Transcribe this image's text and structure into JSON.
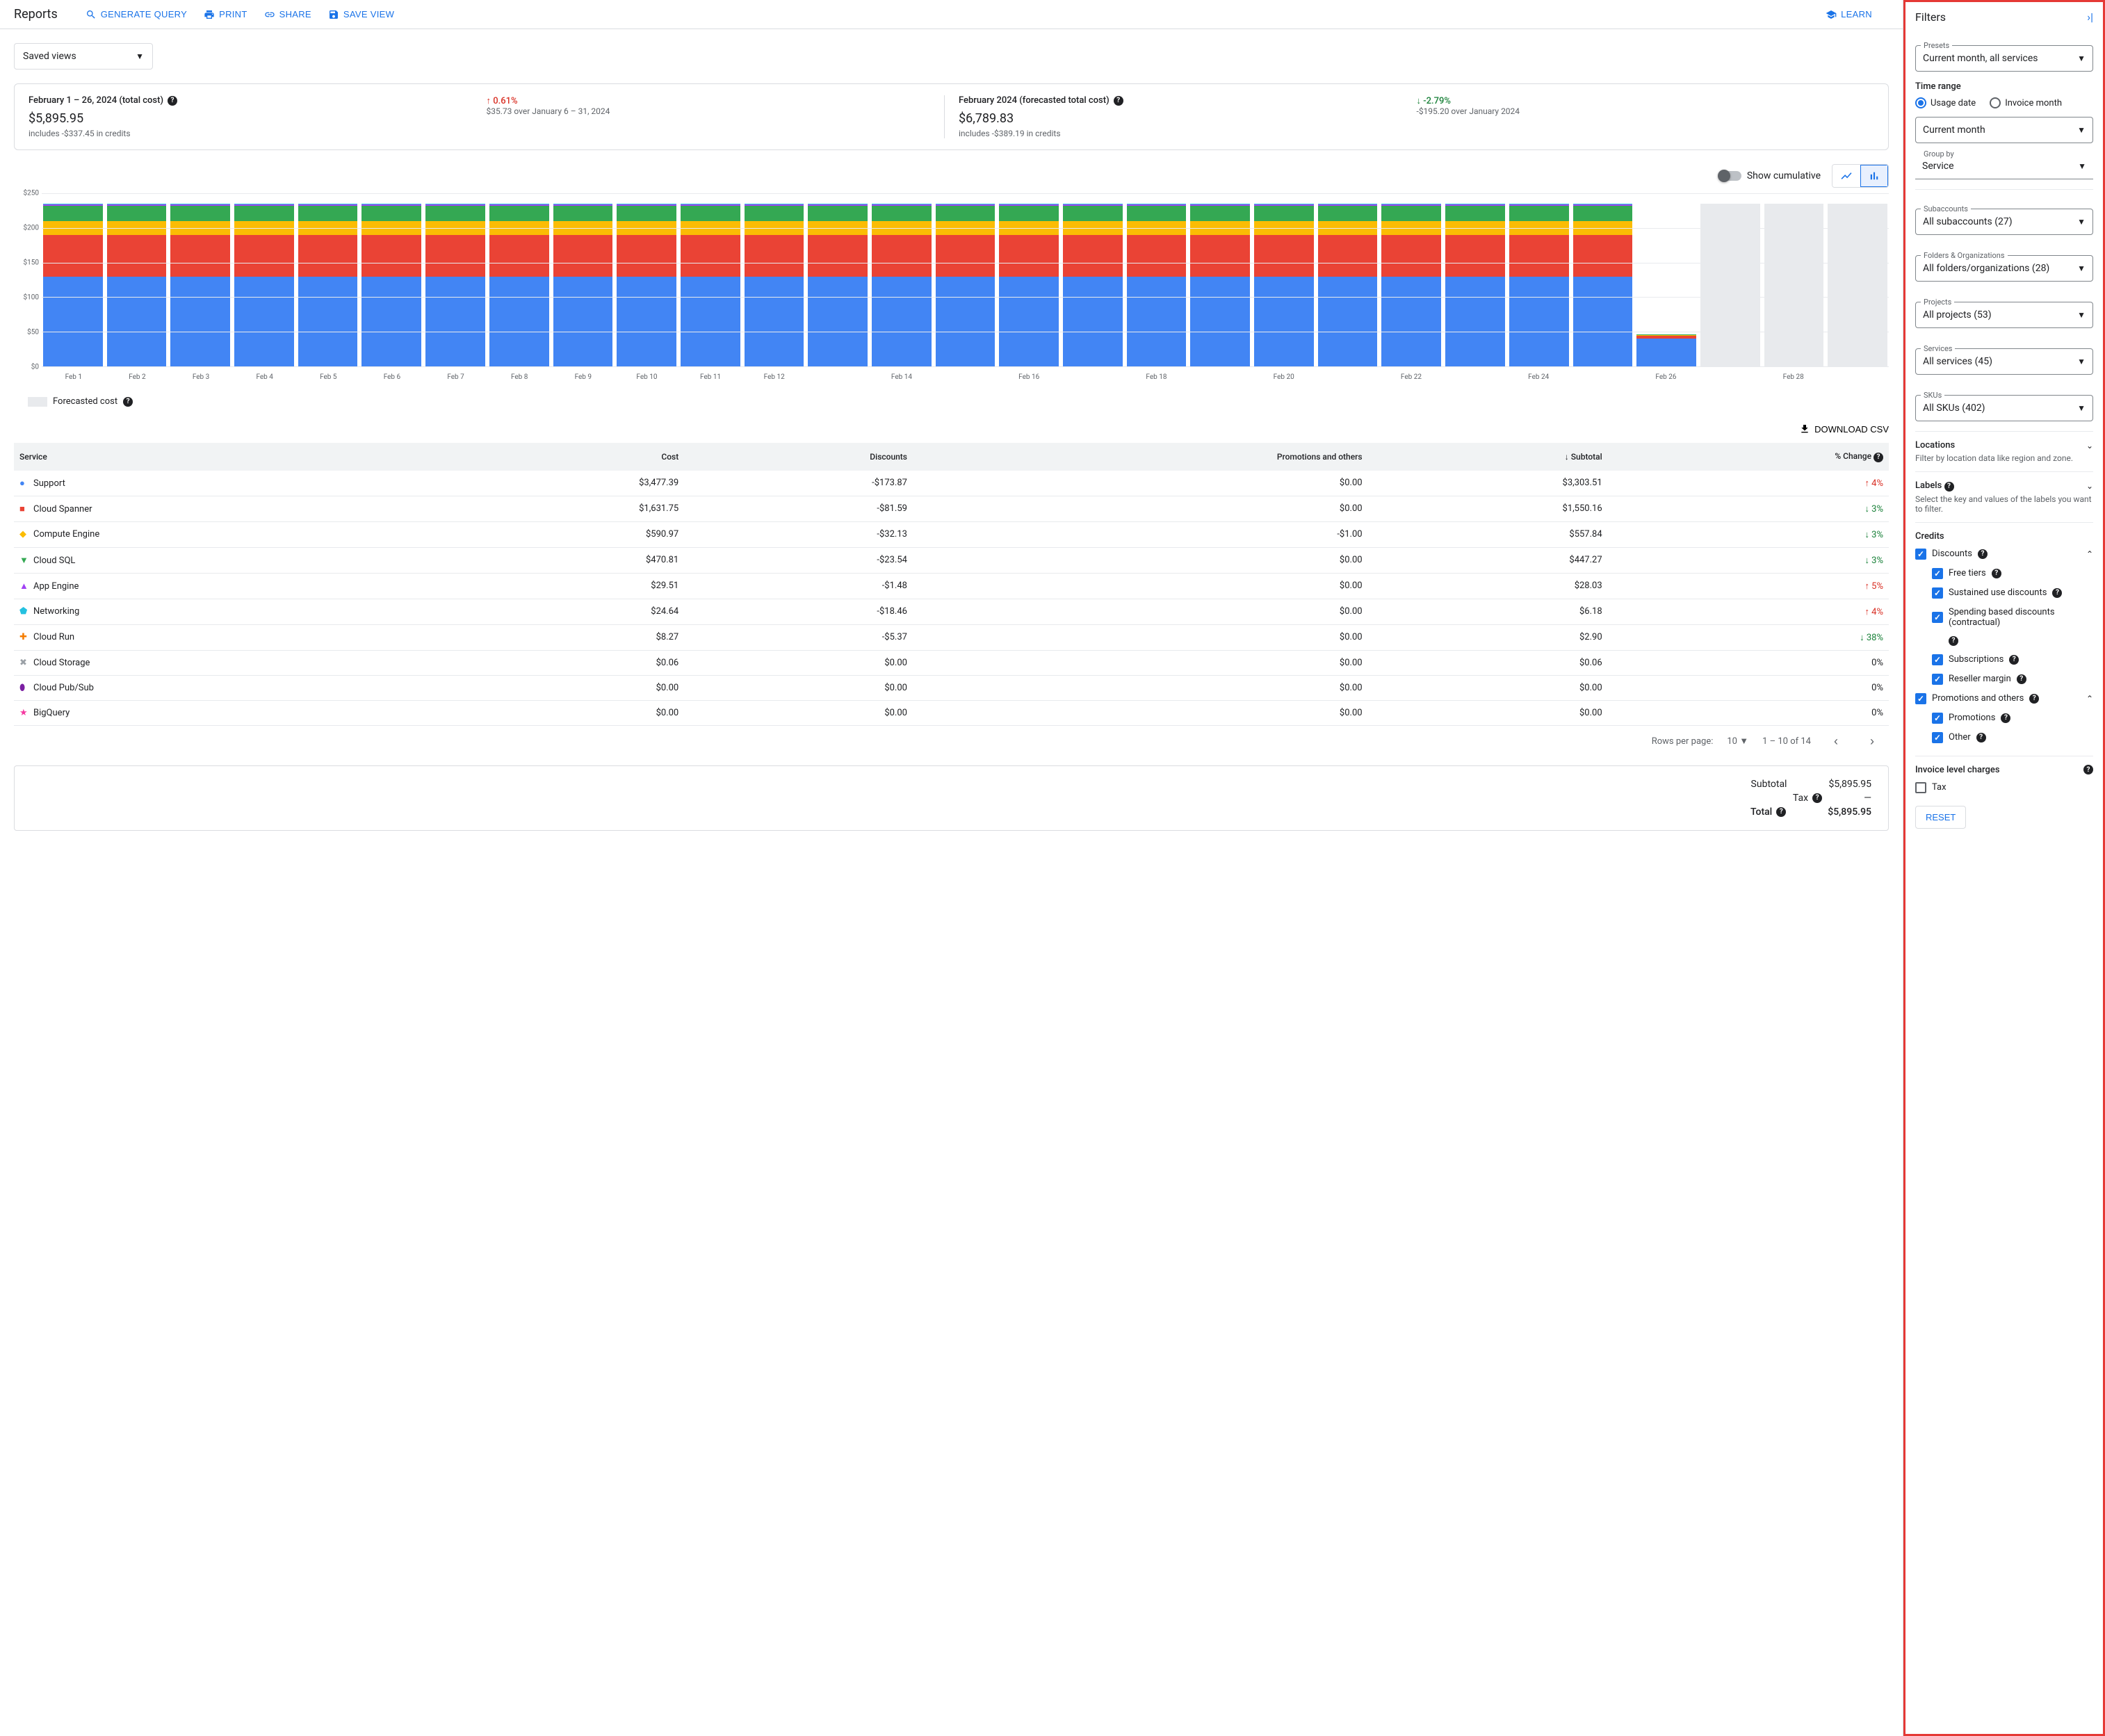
{
  "header": {
    "title": "Reports",
    "generate_query": "GENERATE QUERY",
    "print": "PRINT",
    "share": "SHARE",
    "save_view": "SAVE VIEW",
    "learn": "LEARN"
  },
  "saved_views_label": "Saved views",
  "cards": {
    "actual": {
      "title": "February 1 – 26, 2024 (total cost)",
      "value": "$5,895.95",
      "sub": "includes -$337.45 in credits",
      "change": "0.61%",
      "change_dir": "up",
      "change_sub": "$35.73 over January 6 – 31, 2024"
    },
    "forecast": {
      "title": "February 2024 (forecasted total cost)",
      "value": "$6,789.83",
      "sub": "includes -$389.19 in credits",
      "change": "-2.79%",
      "change_dir": "down",
      "change_sub": "-$195.20 over January 2024"
    }
  },
  "chart_controls": {
    "show_cumulative": "Show cumulative"
  },
  "chart": {
    "type": "stacked-bar",
    "ymax": 250,
    "ytick_step": 50,
    "ylabels": [
      "$0",
      "$50",
      "$100",
      "$150",
      "$200",
      "$250"
    ],
    "series_colors": {
      "support": "#4285f4",
      "spanner": "#ea4335",
      "compute": "#fbbc04",
      "cloudsql": "#34a853",
      "appengine": "#a142f4",
      "networking": "#24c1e0",
      "other": "#f538a0"
    },
    "forecast_color": "#e8eaed",
    "days": [
      {
        "label": "Feb 1",
        "segs": [
          130,
          60,
          20,
          22,
          2,
          1
        ],
        "forecast": false
      },
      {
        "label": "Feb 2",
        "segs": [
          130,
          60,
          20,
          22,
          2,
          1
        ],
        "forecast": false
      },
      {
        "label": "Feb 3",
        "segs": [
          130,
          60,
          20,
          22,
          2,
          1
        ],
        "forecast": false
      },
      {
        "label": "Feb 4",
        "segs": [
          130,
          60,
          20,
          22,
          2,
          1
        ],
        "forecast": false
      },
      {
        "label": "Feb 5",
        "segs": [
          130,
          60,
          20,
          22,
          2,
          1
        ],
        "forecast": false
      },
      {
        "label": "Feb 6",
        "segs": [
          130,
          60,
          20,
          22,
          2,
          1
        ],
        "forecast": false
      },
      {
        "label": "Feb 7",
        "segs": [
          130,
          60,
          20,
          22,
          2,
          1
        ],
        "forecast": false
      },
      {
        "label": "Feb 8",
        "segs": [
          130,
          60,
          20,
          22,
          2,
          1
        ],
        "forecast": false
      },
      {
        "label": "Feb 9",
        "segs": [
          130,
          60,
          20,
          22,
          2,
          1
        ],
        "forecast": false
      },
      {
        "label": "Feb 10",
        "segs": [
          130,
          60,
          20,
          22,
          2,
          1
        ],
        "forecast": false
      },
      {
        "label": "Feb 11",
        "segs": [
          130,
          60,
          20,
          22,
          2,
          1
        ],
        "forecast": false
      },
      {
        "label": "Feb 12",
        "segs": [
          130,
          60,
          20,
          22,
          2,
          1
        ],
        "forecast": false
      },
      {
        "label": "",
        "segs": [
          130,
          60,
          20,
          22,
          2,
          1
        ],
        "forecast": false
      },
      {
        "label": "Feb 14",
        "segs": [
          130,
          60,
          20,
          22,
          2,
          1
        ],
        "forecast": false
      },
      {
        "label": "",
        "segs": [
          130,
          60,
          20,
          22,
          2,
          1
        ],
        "forecast": false
      },
      {
        "label": "Feb 16",
        "segs": [
          130,
          60,
          20,
          22,
          2,
          1
        ],
        "forecast": false
      },
      {
        "label": "",
        "segs": [
          130,
          60,
          20,
          22,
          2,
          1
        ],
        "forecast": false
      },
      {
        "label": "Feb 18",
        "segs": [
          130,
          60,
          20,
          22,
          2,
          1
        ],
        "forecast": false
      },
      {
        "label": "",
        "segs": [
          130,
          60,
          20,
          22,
          2,
          1
        ],
        "forecast": false
      },
      {
        "label": "Feb 20",
        "segs": [
          130,
          60,
          20,
          22,
          2,
          1
        ],
        "forecast": false
      },
      {
        "label": "",
        "segs": [
          130,
          60,
          20,
          22,
          2,
          1
        ],
        "forecast": false
      },
      {
        "label": "Feb 22",
        "segs": [
          130,
          60,
          20,
          22,
          2,
          1
        ],
        "forecast": false
      },
      {
        "label": "",
        "segs": [
          130,
          60,
          20,
          22,
          2,
          1
        ],
        "forecast": false
      },
      {
        "label": "Feb 24",
        "segs": [
          130,
          60,
          20,
          22,
          2,
          1
        ],
        "forecast": false
      },
      {
        "label": "",
        "segs": [
          130,
          60,
          20,
          22,
          2,
          1
        ],
        "forecast": false
      },
      {
        "label": "Feb 26",
        "segs": [
          40,
          4,
          1,
          1,
          0,
          0
        ],
        "forecast": false
      },
      {
        "label": "",
        "segs": [
          235
        ],
        "forecast": true
      },
      {
        "label": "Feb 28",
        "segs": [
          235
        ],
        "forecast": true
      },
      {
        "label": "",
        "segs": [
          235
        ],
        "forecast": true
      }
    ]
  },
  "legend": {
    "forecast": "Forecasted cost"
  },
  "download_csv": "DOWNLOAD CSV",
  "table": {
    "columns": [
      "Service",
      "Cost",
      "Discounts",
      "Promotions and others",
      "Subtotal",
      "% Change"
    ],
    "rows": [
      {
        "marker": "●",
        "color": "#4285f4",
        "service": "Support",
        "cost": "$3,477.39",
        "discounts": "-$173.87",
        "promo": "$0.00",
        "subtotal": "$3,303.51",
        "change": "4%",
        "dir": "up"
      },
      {
        "marker": "■",
        "color": "#ea4335",
        "service": "Cloud Spanner",
        "cost": "$1,631.75",
        "discounts": "-$81.59",
        "promo": "$0.00",
        "subtotal": "$1,550.16",
        "change": "3%",
        "dir": "down"
      },
      {
        "marker": "◆",
        "color": "#fbbc04",
        "service": "Compute Engine",
        "cost": "$590.97",
        "discounts": "-$32.13",
        "promo": "-$1.00",
        "subtotal": "$557.84",
        "change": "3%",
        "dir": "down"
      },
      {
        "marker": "▼",
        "color": "#34a853",
        "service": "Cloud SQL",
        "cost": "$470.81",
        "discounts": "-$23.54",
        "promo": "$0.00",
        "subtotal": "$447.27",
        "change": "3%",
        "dir": "down"
      },
      {
        "marker": "▲",
        "color": "#a142f4",
        "service": "App Engine",
        "cost": "$29.51",
        "discounts": "-$1.48",
        "promo": "$0.00",
        "subtotal": "$28.03",
        "change": "5%",
        "dir": "up"
      },
      {
        "marker": "⬟",
        "color": "#24c1e0",
        "service": "Networking",
        "cost": "$24.64",
        "discounts": "-$18.46",
        "promo": "$0.00",
        "subtotal": "$6.18",
        "change": "4%",
        "dir": "up"
      },
      {
        "marker": "✚",
        "color": "#f57c00",
        "service": "Cloud Run",
        "cost": "$8.27",
        "discounts": "-$5.37",
        "promo": "$0.00",
        "subtotal": "$2.90",
        "change": "38%",
        "dir": "down"
      },
      {
        "marker": "✖",
        "color": "#9aa0a6",
        "service": "Cloud Storage",
        "cost": "$0.06",
        "discounts": "$0.00",
        "promo": "$0.00",
        "subtotal": "$0.06",
        "change": "0%",
        "dir": "none"
      },
      {
        "marker": "⬮",
        "color": "#7b1fa2",
        "service": "Cloud Pub/Sub",
        "cost": "$0.00",
        "discounts": "$0.00",
        "promo": "$0.00",
        "subtotal": "$0.00",
        "change": "0%",
        "dir": "none"
      },
      {
        "marker": "★",
        "color": "#f538a0",
        "service": "BigQuery",
        "cost": "$0.00",
        "discounts": "$0.00",
        "promo": "$0.00",
        "subtotal": "$0.00",
        "change": "0%",
        "dir": "none"
      }
    ]
  },
  "pagination": {
    "rows_per_page_label": "Rows per page:",
    "rows_per_page": "10",
    "range": "1 – 10 of 14"
  },
  "totals": {
    "subtotal_label": "Subtotal",
    "subtotal": "$5,895.95",
    "tax_label": "Tax",
    "tax": "—",
    "total_label": "Total",
    "total": "$5,895.95"
  },
  "filters": {
    "title": "Filters",
    "presets_label": "Presets",
    "presets_value": "Current month, all services",
    "time_range_label": "Time range",
    "usage_date": "Usage date",
    "invoice_month": "Invoice month",
    "time_range_value": "Current month",
    "group_by_label": "Group by",
    "group_by_value": "Service",
    "subaccounts_label": "Subaccounts",
    "subaccounts_value": "All subaccounts (27)",
    "folders_label": "Folders & Organizations",
    "folders_value": "All folders/organizations (28)",
    "projects_label": "Projects",
    "projects_value": "All projects (53)",
    "services_label": "Services",
    "services_value": "All services (45)",
    "skus_label": "SKUs",
    "skus_value": "All SKUs (402)",
    "locations_label": "Locations",
    "locations_sub": "Filter by location data like region and zone.",
    "labels_label": "Labels",
    "labels_sub": "Select the key and values of the labels you want to filter.",
    "credits_label": "Credits",
    "discounts_label": "Discounts",
    "free_tiers": "Free tiers",
    "sustained": "Sustained use discounts",
    "spending": "Spending based discounts (contractual)",
    "subscriptions": "Subscriptions",
    "reseller": "Reseller margin",
    "promo_label": "Promotions and others",
    "promotions": "Promotions",
    "other": "Other",
    "invoice_charges": "Invoice level charges",
    "tax_cb": "Tax",
    "reset": "RESET"
  }
}
